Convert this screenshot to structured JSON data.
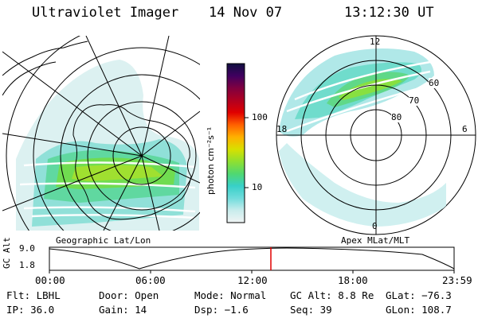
{
  "header": {
    "title": "Ultraviolet Imager",
    "date": "14 Nov 07",
    "time": "13:12:30 UT"
  },
  "left_panel": {
    "caption": "Geographic Lat/Lon"
  },
  "right_panel": {
    "caption": "Apex MLat/MLT",
    "mlt_labels": {
      "top": "12",
      "bottom": "0",
      "left": "18",
      "right": "6"
    },
    "mlat_labels": [
      "60",
      "70",
      "80"
    ]
  },
  "colorbar": {
    "label": "photon cm⁻²s⁻¹",
    "ticks": [
      "100",
      "10"
    ],
    "colors": [
      "#f0f4f4",
      "#c8ecec",
      "#70dcdc",
      "#38d0c8",
      "#50d870",
      "#90e030",
      "#d8e000",
      "#ffb000",
      "#ff6000",
      "#e00000",
      "#b00020",
      "#800040",
      "#400060",
      "#101040"
    ]
  },
  "altitude_plot": {
    "ylabel": "GC Alt",
    "y_ticks": [
      "9.0",
      "1.8"
    ],
    "x_ticks": [
      "00:00",
      "06:00",
      "12:00",
      "18:00",
      "23:59"
    ],
    "current_time_color": "#e00000"
  },
  "info_rows": [
    [
      "Flt: LBHL",
      "Door: Open",
      "Mode: Normal",
      "GC Alt: 8.8 Re",
      "GLat: −76.3"
    ],
    [
      "IP: 36.0",
      "Gain: 14",
      "Dsp:   −1.6",
      "Seq: 39",
      "GLon: 108.7"
    ]
  ]
}
